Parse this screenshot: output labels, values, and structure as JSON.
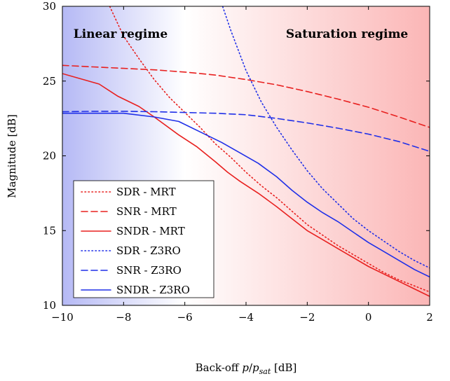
{
  "chart_data": {
    "type": "line",
    "title": "",
    "xlabel": "Back-off p/p_sat [dB]",
    "xlabel_parts": {
      "prefix": "Back-off ",
      "var_p": "p",
      "slash": "/",
      "var_psat": "p",
      "sub": "sat",
      "suffix": " [dB]"
    },
    "ylabel": "Magnitude [dB]",
    "xlim": [
      -10,
      2
    ],
    "ylim": [
      10,
      30
    ],
    "xticks": [
      -10,
      -8,
      -6,
      -4,
      -2,
      0,
      2
    ],
    "yticks": [
      10,
      15,
      20,
      25,
      30
    ],
    "xtick_labels": [
      "−10",
      "−8",
      "−6",
      "−4",
      "−2",
      "0",
      "2"
    ],
    "ytick_labels": [
      "10",
      "15",
      "20",
      "25",
      "30"
    ],
    "background": {
      "left_color": "#b5b9f5",
      "mid_color": "#ffffff",
      "right_color": "#fbb6b6",
      "mid_x": -6
    },
    "regions": [
      {
        "label": "Linear regime",
        "x": -8.1,
        "y": 27.9
      },
      {
        "label": "Saturation regime",
        "x": -0.7,
        "y": 27.9
      }
    ],
    "legend_position": "lower-left",
    "series": [
      {
        "name": "SDR - MRT",
        "color": "#e8201f",
        "dash": "dotted",
        "x": [
          -8.5,
          -8.0,
          -7.5,
          -7.0,
          -6.5,
          -6.0,
          -5.5,
          -5.0,
          -4.5,
          -4.0,
          -3.5,
          -3.0,
          -2.5,
          -2.0,
          -1.5,
          -1.0,
          -0.5,
          0,
          0.5,
          1.0,
          1.5,
          2.0
        ],
        "y": [
          30.2,
          28.0,
          26.5,
          25.1,
          23.9,
          22.9,
          21.9,
          20.8,
          19.9,
          18.9,
          18.0,
          17.2,
          16.3,
          15.4,
          14.7,
          14.0,
          13.4,
          12.8,
          12.2,
          11.7,
          11.3,
          10.9
        ]
      },
      {
        "name": "SNR - MRT",
        "color": "#e8201f",
        "dash": "dashed",
        "x": [
          -10,
          -9,
          -8,
          -7,
          -6,
          -5,
          -4,
          -3,
          -2,
          -1,
          0,
          1,
          2
        ],
        "y": [
          26.05,
          25.95,
          25.85,
          25.75,
          25.6,
          25.4,
          25.1,
          24.75,
          24.3,
          23.8,
          23.25,
          22.6,
          21.9
        ]
      },
      {
        "name": "SNDR - MRT",
        "color": "#e8201f",
        "dash": "solid",
        "x": [
          -10,
          -8.8,
          -8.2,
          -7.5,
          -7.0,
          -6.2,
          -5.6,
          -5.0,
          -4.6,
          -4.2,
          -3.6,
          -3.0,
          -2.5,
          -2.0,
          -1.5,
          -1.0,
          -0.5,
          0,
          0.5,
          1.0,
          1.5,
          2.0
        ],
        "y": [
          25.5,
          24.8,
          24.0,
          23.3,
          22.6,
          21.4,
          20.6,
          19.6,
          18.9,
          18.3,
          17.5,
          16.6,
          15.8,
          15.0,
          14.4,
          13.8,
          13.2,
          12.6,
          12.1,
          11.6,
          11.1,
          10.6
        ]
      },
      {
        "name": "SDR - Z3RO",
        "color": "#1f2fe8",
        "dash": "dotted",
        "x": [
          -4.8,
          -4.5,
          -4.0,
          -3.5,
          -3.0,
          -2.5,
          -2.0,
          -1.5,
          -1.0,
          -0.5,
          0,
          0.5,
          1.0,
          1.5,
          2.0
        ],
        "y": [
          30.2,
          28.4,
          25.7,
          23.6,
          21.9,
          20.4,
          19.0,
          17.8,
          16.8,
          15.8,
          15.0,
          14.3,
          13.6,
          13.0,
          12.5
        ]
      },
      {
        "name": "SNR - Z3RO",
        "color": "#1f2fe8",
        "dash": "dashed",
        "x": [
          -10,
          -9,
          -8,
          -7,
          -6,
          -5,
          -4,
          -3,
          -2,
          -1,
          0,
          1,
          2
        ],
        "y": [
          22.95,
          22.98,
          22.98,
          22.95,
          22.9,
          22.85,
          22.75,
          22.5,
          22.2,
          21.85,
          21.45,
          20.95,
          20.3
        ]
      },
      {
        "name": "SNDR - Z3RO",
        "color": "#1f2fe8",
        "dash": "solid",
        "x": [
          -10,
          -9,
          -8,
          -7,
          -6.2,
          -5.5,
          -4.8,
          -4.2,
          -3.6,
          -3.0,
          -2.5,
          -2.0,
          -1.5,
          -1.0,
          -0.5,
          0,
          0.5,
          1.0,
          1.5,
          2.0
        ],
        "y": [
          22.85,
          22.85,
          22.85,
          22.6,
          22.3,
          21.6,
          20.9,
          20.2,
          19.5,
          18.6,
          17.7,
          16.9,
          16.2,
          15.6,
          14.9,
          14.2,
          13.6,
          13.0,
          12.4,
          11.9
        ]
      }
    ]
  }
}
